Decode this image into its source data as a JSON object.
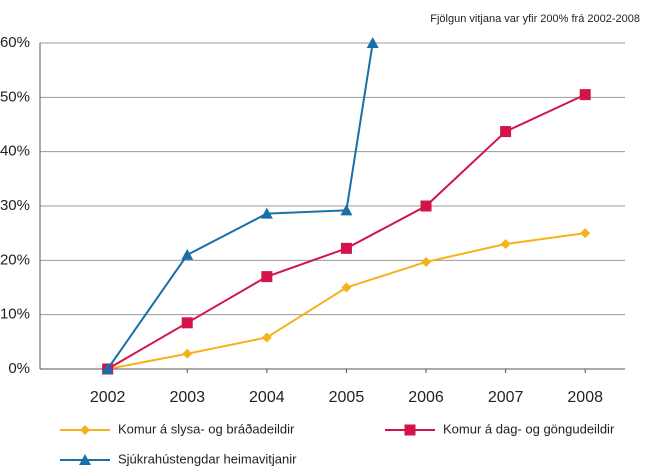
{
  "chart_data": {
    "type": "line",
    "annotation": "Fjölgun vitjana var yfir 200% frá 2002-2008",
    "x": [
      2002,
      2003,
      2004,
      2005,
      2006,
      2007,
      2008
    ],
    "xlim": [
      2001.15,
      2008.5
    ],
    "xticks": [
      2002,
      2003,
      2004,
      2005,
      2006,
      2007,
      2008
    ],
    "ylim": [
      0,
      60
    ],
    "yticks": [
      {
        "value": 0,
        "label": "0%"
      },
      {
        "value": 10,
        "label": "10%"
      },
      {
        "value": 20,
        "label": "20%"
      },
      {
        "value": 30,
        "label": "30%"
      },
      {
        "value": 40,
        "label": "40%"
      },
      {
        "value": 50,
        "label": "50%"
      },
      {
        "value": 60,
        "label": "60%"
      }
    ],
    "grid": true,
    "legend": "bottom",
    "series": [
      {
        "name": "Komur á slysa- og bráðadeildir",
        "color": "#f5b21a",
        "marker": "diamond",
        "values": [
          0,
          2.8,
          5.8,
          15,
          19.7,
          23,
          25
        ]
      },
      {
        "name": "Komur á dag- og göngudeildir",
        "color": "#d2144a",
        "marker": "square",
        "values": [
          0,
          8.5,
          17,
          22.2,
          30,
          43.7,
          50.5
        ]
      },
      {
        "name": "Sjúkrahústengdar heimavitjanir",
        "color": "#1a6fa8",
        "marker": "triangle",
        "x": [
          2002,
          2003,
          2004,
          2005,
          2005.33
        ],
        "values": [
          0,
          21,
          28.6,
          29.2,
          60
        ]
      }
    ]
  }
}
